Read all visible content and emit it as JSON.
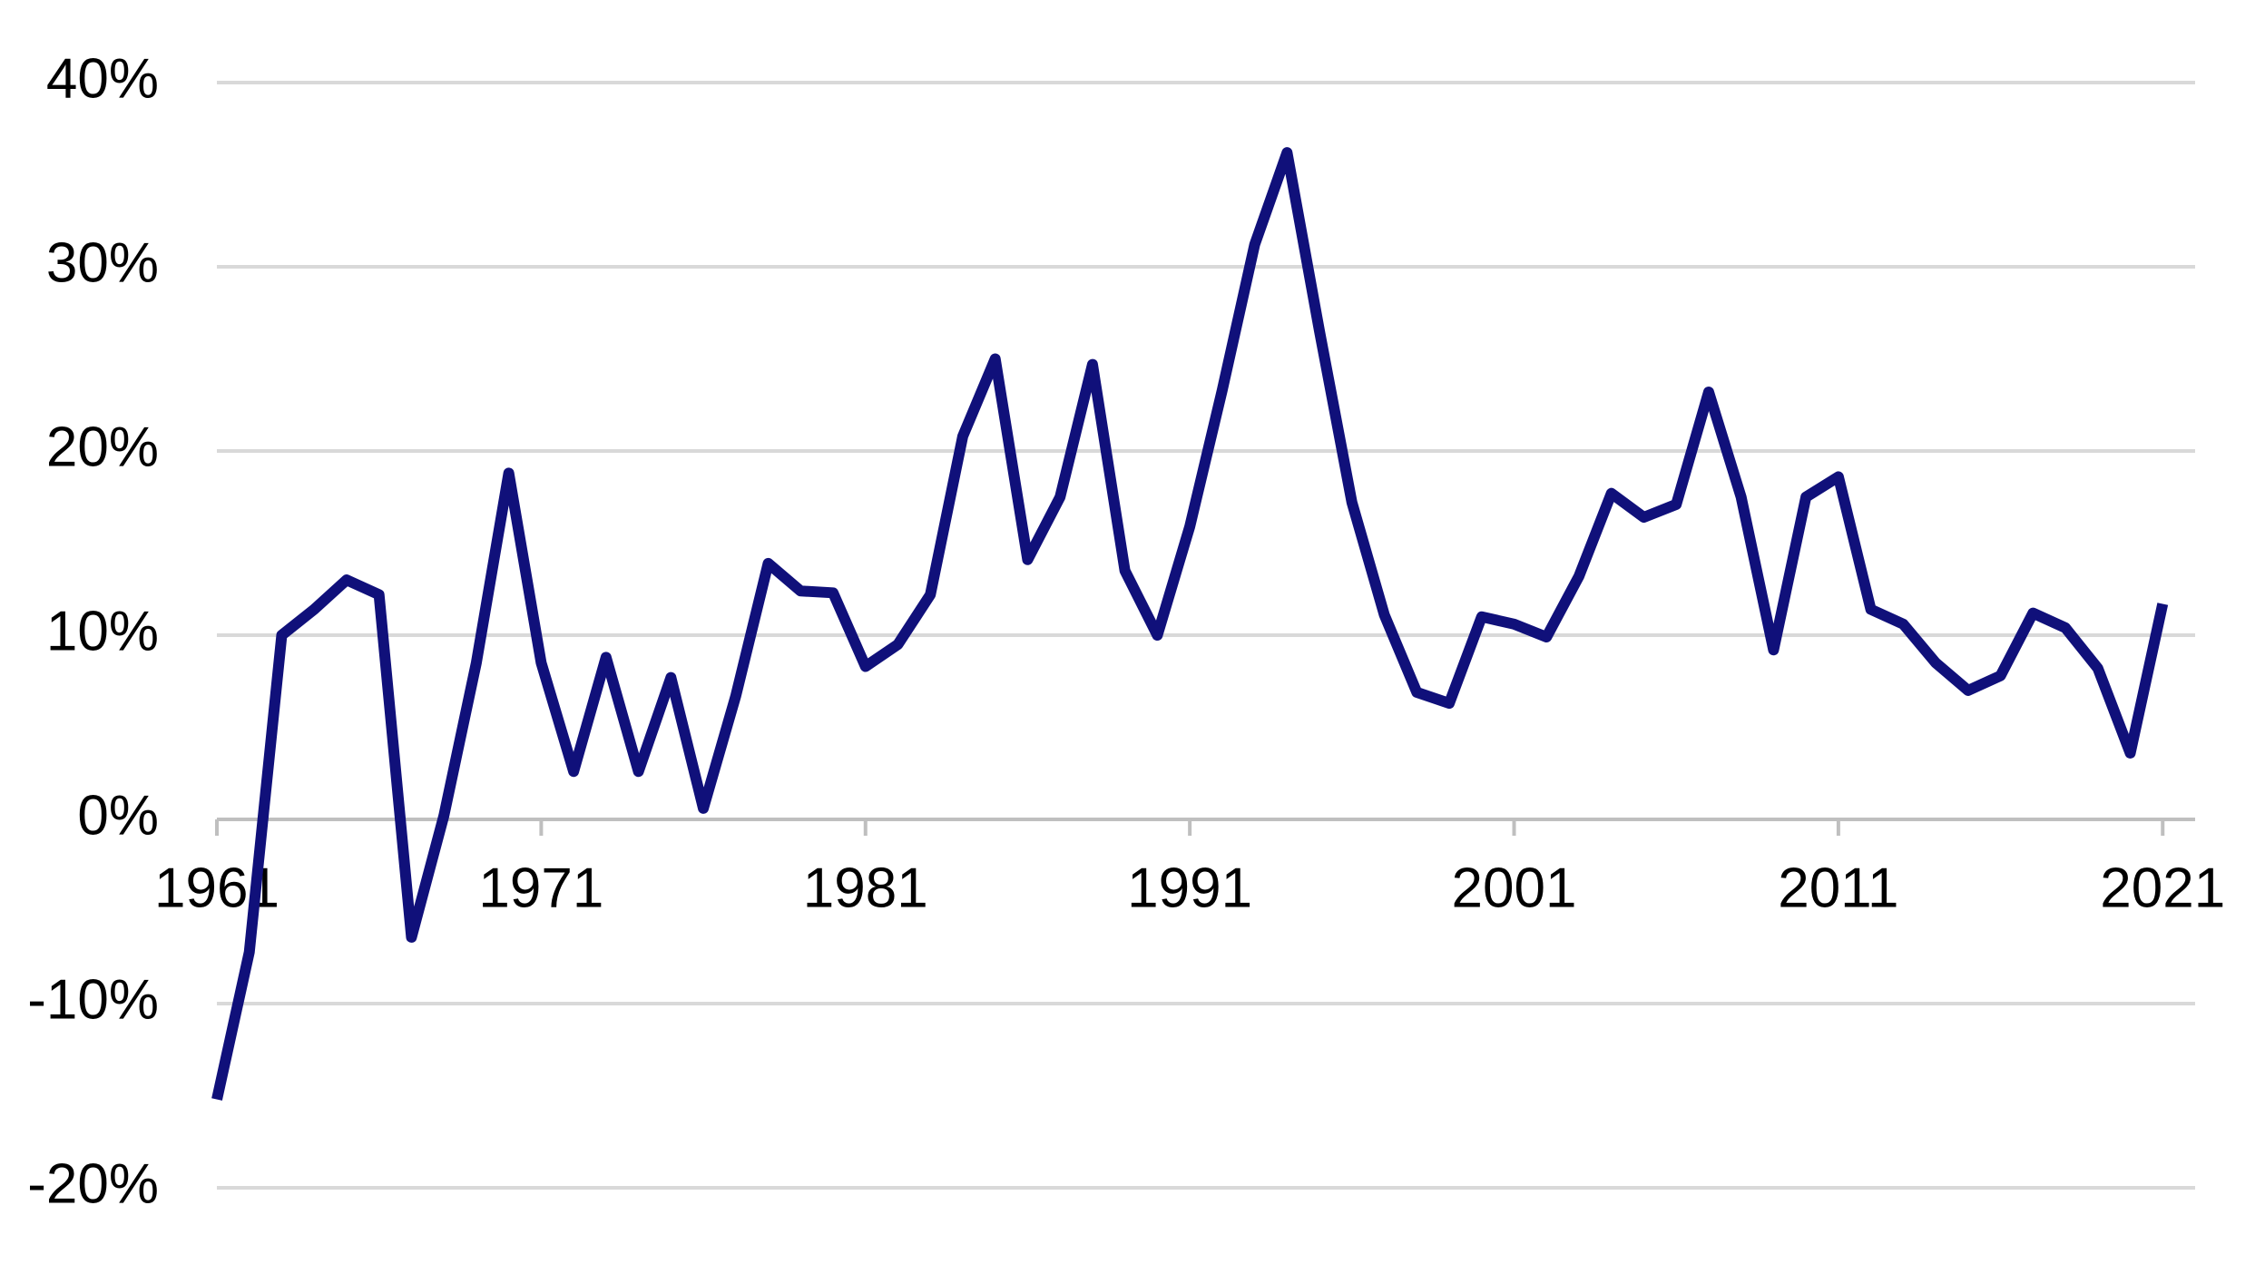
{
  "chart_data": {
    "type": "line",
    "x": [
      1961,
      1962,
      1963,
      1964,
      1965,
      1966,
      1967,
      1968,
      1969,
      1970,
      1971,
      1972,
      1973,
      1974,
      1975,
      1976,
      1977,
      1978,
      1979,
      1980,
      1981,
      1982,
      1983,
      1984,
      1985,
      1986,
      1987,
      1988,
      1989,
      1990,
      1991,
      1992,
      1993,
      1994,
      1995,
      1996,
      1997,
      1998,
      1999,
      2000,
      2001,
      2002,
      2003,
      2004,
      2005,
      2006,
      2007,
      2008,
      2009,
      2010,
      2011,
      2012,
      2013,
      2014,
      2015,
      2016,
      2017,
      2018,
      2019,
      2020,
      2021
    ],
    "series": [
      {
        "color": "#10107a",
        "values": [
          -15.2,
          -7.2,
          10.0,
          11.4,
          13.0,
          12.2,
          -6.4,
          0.2,
          8.5,
          18.8,
          8.5,
          2.6,
          8.8,
          2.6,
          7.7,
          0.6,
          6.7,
          13.9,
          12.4,
          12.3,
          8.3,
          9.5,
          12.2,
          20.8,
          25.0,
          14.1,
          17.5,
          24.7,
          13.5,
          10.0,
          15.9,
          23.3,
          31.2,
          36.2,
          26.5,
          17.2,
          11.1,
          6.9,
          6.3,
          11.0,
          10.6,
          9.9,
          13.2,
          17.7,
          16.4,
          17.1,
          23.2,
          17.5,
          9.2,
          17.5,
          18.6,
          11.4,
          10.6,
          8.5,
          7.0,
          7.8,
          11.2,
          10.4,
          8.2,
          3.6,
          11.7
        ]
      }
    ],
    "xlim": [
      1961,
      2022
    ],
    "xticks": [
      1961,
      1971,
      1981,
      1991,
      2001,
      2011,
      2021
    ],
    "ylim": [
      -20,
      40
    ],
    "yticks": [
      {
        "value": -20,
        "label": "-20%"
      },
      {
        "value": -10,
        "label": "-10%"
      },
      {
        "value": 0,
        "label": "0%"
      },
      {
        "value": 10,
        "label": "10%"
      },
      {
        "value": 20,
        "label": "20%"
      },
      {
        "value": 30,
        "label": "30%"
      },
      {
        "value": 40,
        "label": "40%"
      }
    ],
    "grid": true
  }
}
